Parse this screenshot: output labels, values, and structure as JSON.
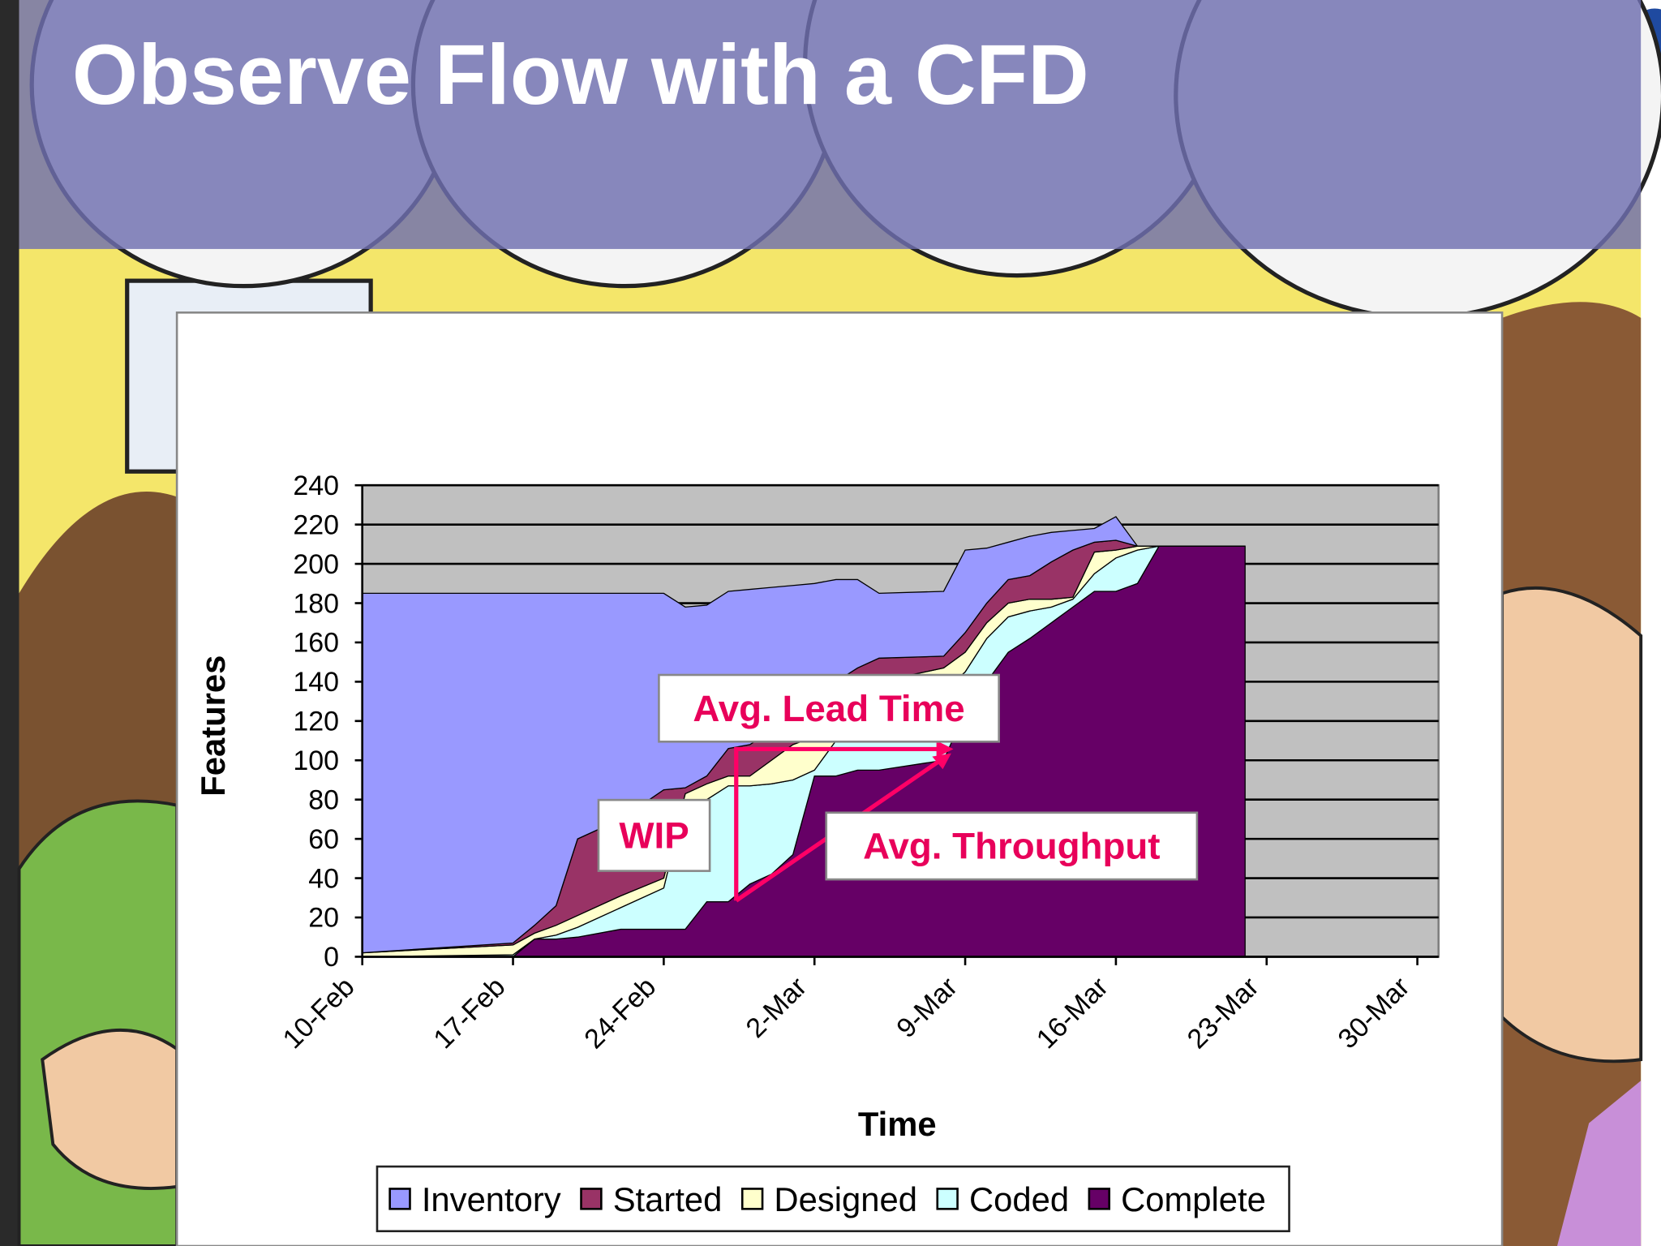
{
  "chart_data": {
    "type": "area",
    "stacked": true,
    "title": "Observe Flow with a CFD",
    "xlabel": "Time",
    "ylabel": "Features",
    "x": [
      "10-Feb",
      "17-Feb",
      "18-Feb",
      "19-Feb",
      "20-Feb",
      "22-Feb",
      "24-Feb",
      "25-Feb",
      "26-Feb",
      "27-Feb",
      "28-Feb",
      "29-Feb",
      "1-Mar",
      "2-Mar",
      "3-Mar",
      "4-Mar",
      "5-Mar",
      "8-Mar",
      "9-Mar",
      "10-Mar",
      "11-Mar",
      "12-Mar",
      "13-Mar",
      "14-Mar",
      "15-Mar",
      "16-Mar",
      "17-Mar",
      "18-Mar",
      "22-Mar"
    ],
    "series": [
      {
        "name": "Inventory",
        "color": "#9999ff",
        "values": [
          183,
          178,
          169,
          159,
          125,
          115,
          100,
          92,
          87,
          80,
          79,
          73,
          67,
          62,
          52,
          45,
          33,
          33,
          42,
          28,
          19,
          20,
          15,
          10,
          7,
          12,
          0,
          0,
          0
        ]
      },
      {
        "name": "Started",
        "color": "#993366",
        "values": [
          0,
          1,
          4,
          10,
          39,
          39,
          45,
          3,
          4,
          14,
          16,
          15,
          14,
          16,
          15,
          12,
          12,
          6,
          10,
          10,
          12,
          12,
          19,
          24,
          5,
          5,
          0,
          0,
          0
        ]
      },
      {
        "name": "Designed",
        "color": "#ffffcc",
        "values": [
          2,
          5,
          3,
          5,
          6,
          6,
          5,
          3,
          8,
          5,
          5,
          12,
          18,
          17,
          15,
          20,
          20,
          12,
          10,
          8,
          7,
          6,
          4,
          1,
          11,
          4,
          2,
          0,
          0
        ]
      },
      {
        "name": "Coded",
        "color": "#ccffff",
        "values": [
          0,
          1,
          0,
          2,
          5,
          11,
          21,
          66,
          52,
          59,
          50,
          46,
          38,
          3,
          18,
          20,
          25,
          35,
          20,
          22,
          18,
          14,
          8,
          4,
          9,
          17,
          17,
          0,
          0
        ]
      },
      {
        "name": "Complete",
        "color": "#660066",
        "values": [
          0,
          0,
          9,
          9,
          10,
          14,
          14,
          14,
          28,
          28,
          37,
          42,
          52,
          92,
          92,
          95,
          95,
          100,
          125,
          140,
          155,
          162,
          170,
          178,
          186,
          186,
          190,
          209,
          209
        ]
      }
    ],
    "xlim": [
      "10-Feb",
      "30-Mar"
    ],
    "xticks": [
      "10-Feb",
      "17-Feb",
      "24-Feb",
      "2-Mar",
      "9-Mar",
      "16-Mar",
      "23-Mar",
      "30-Mar"
    ],
    "ylim": [
      0,
      240
    ],
    "yticks": [
      0,
      20,
      40,
      60,
      80,
      100,
      120,
      140,
      160,
      180,
      200,
      220,
      240
    ],
    "grid": true,
    "legend": "bottom",
    "annotations": [
      "Avg. Lead Time",
      "WIP",
      "Avg. Throughput"
    ]
  }
}
